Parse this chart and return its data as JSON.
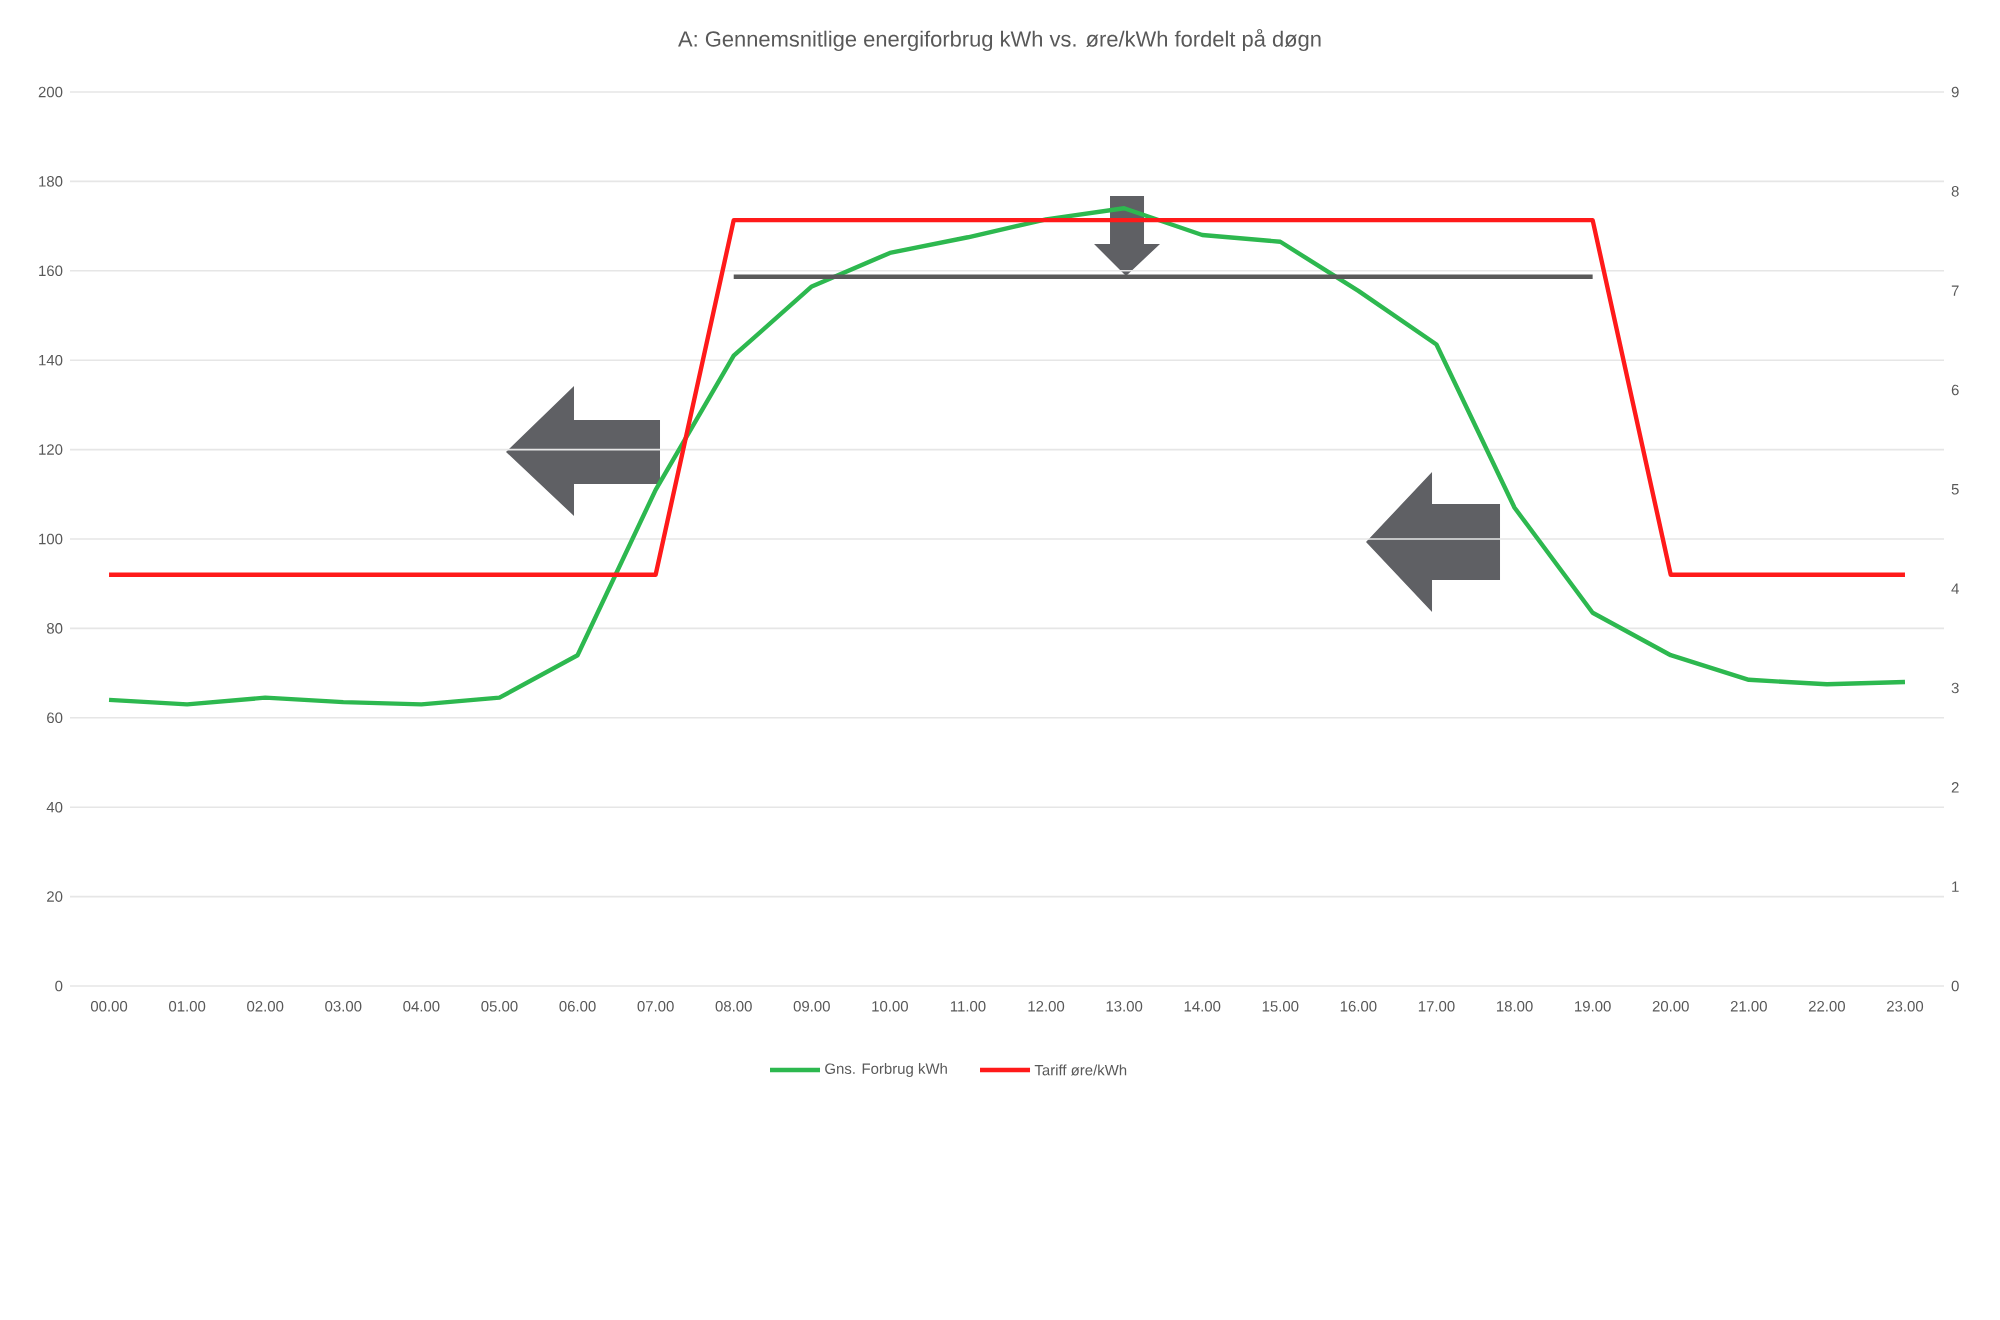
{
  "chart_data": {
    "type": "line",
    "title": "A: Gennemsnitlige energiforbrug kWh vs. øre/kWh fordelt på døgn",
    "categories": [
      "00.00",
      "01.00",
      "02.00",
      "03.00",
      "04.00",
      "05.00",
      "06.00",
      "07.00",
      "08.00",
      "09.00",
      "10.00",
      "11.00",
      "12.00",
      "13.00",
      "14.00",
      "15.00",
      "16.00",
      "17.00",
      "18.00",
      "19.00",
      "20.00",
      "21.00",
      "22.00",
      "23.00"
    ],
    "series": [
      {
        "name": "Gns. Forbrug kWh",
        "color": "#2db84f",
        "values": [
          64,
          63,
          64.5,
          63.5,
          63,
          64.5,
          74,
          111,
          141,
          156.5,
          164,
          167.5,
          171.5,
          174,
          168,
          166.5,
          155.5,
          143.5,
          107,
          83.5,
          74,
          68.5,
          67.5,
          68
        ]
      },
      {
        "name": "Tariff øre/kWh",
        "color": "#ff1a1a",
        "axis": "y2",
        "values": [
          4.14,
          4.14,
          4.14,
          4.14,
          4.14,
          4.14,
          4.14,
          4.14,
          7.71,
          7.71,
          7.71,
          7.71,
          7.71,
          7.71,
          7.71,
          7.71,
          7.71,
          7.71,
          7.71,
          7.71,
          4.14,
          4.14,
          4.14,
          4.14
        ]
      },
      {
        "color": "#595959",
        "axis": "y2",
        "values": [
          null,
          null,
          null,
          null,
          null,
          null,
          null,
          null,
          7.14,
          7.14,
          7.14,
          7.14,
          7.14,
          7.14,
          7.14,
          7.14,
          7.14,
          7.14,
          7.14,
          7.14,
          null,
          null,
          null,
          null
        ]
      }
    ],
    "ylim": [
      0,
      200
    ],
    "yticks": [
      0,
      20,
      40,
      60,
      80,
      100,
      120,
      140,
      160,
      180,
      200
    ],
    "y2lim": [
      0,
      9
    ],
    "y2ticks": [
      0,
      1,
      2,
      3,
      4,
      5,
      6,
      7,
      8,
      9
    ],
    "grid": "y",
    "legend": "bottom",
    "marker": "none",
    "line_style": "solid"
  }
}
